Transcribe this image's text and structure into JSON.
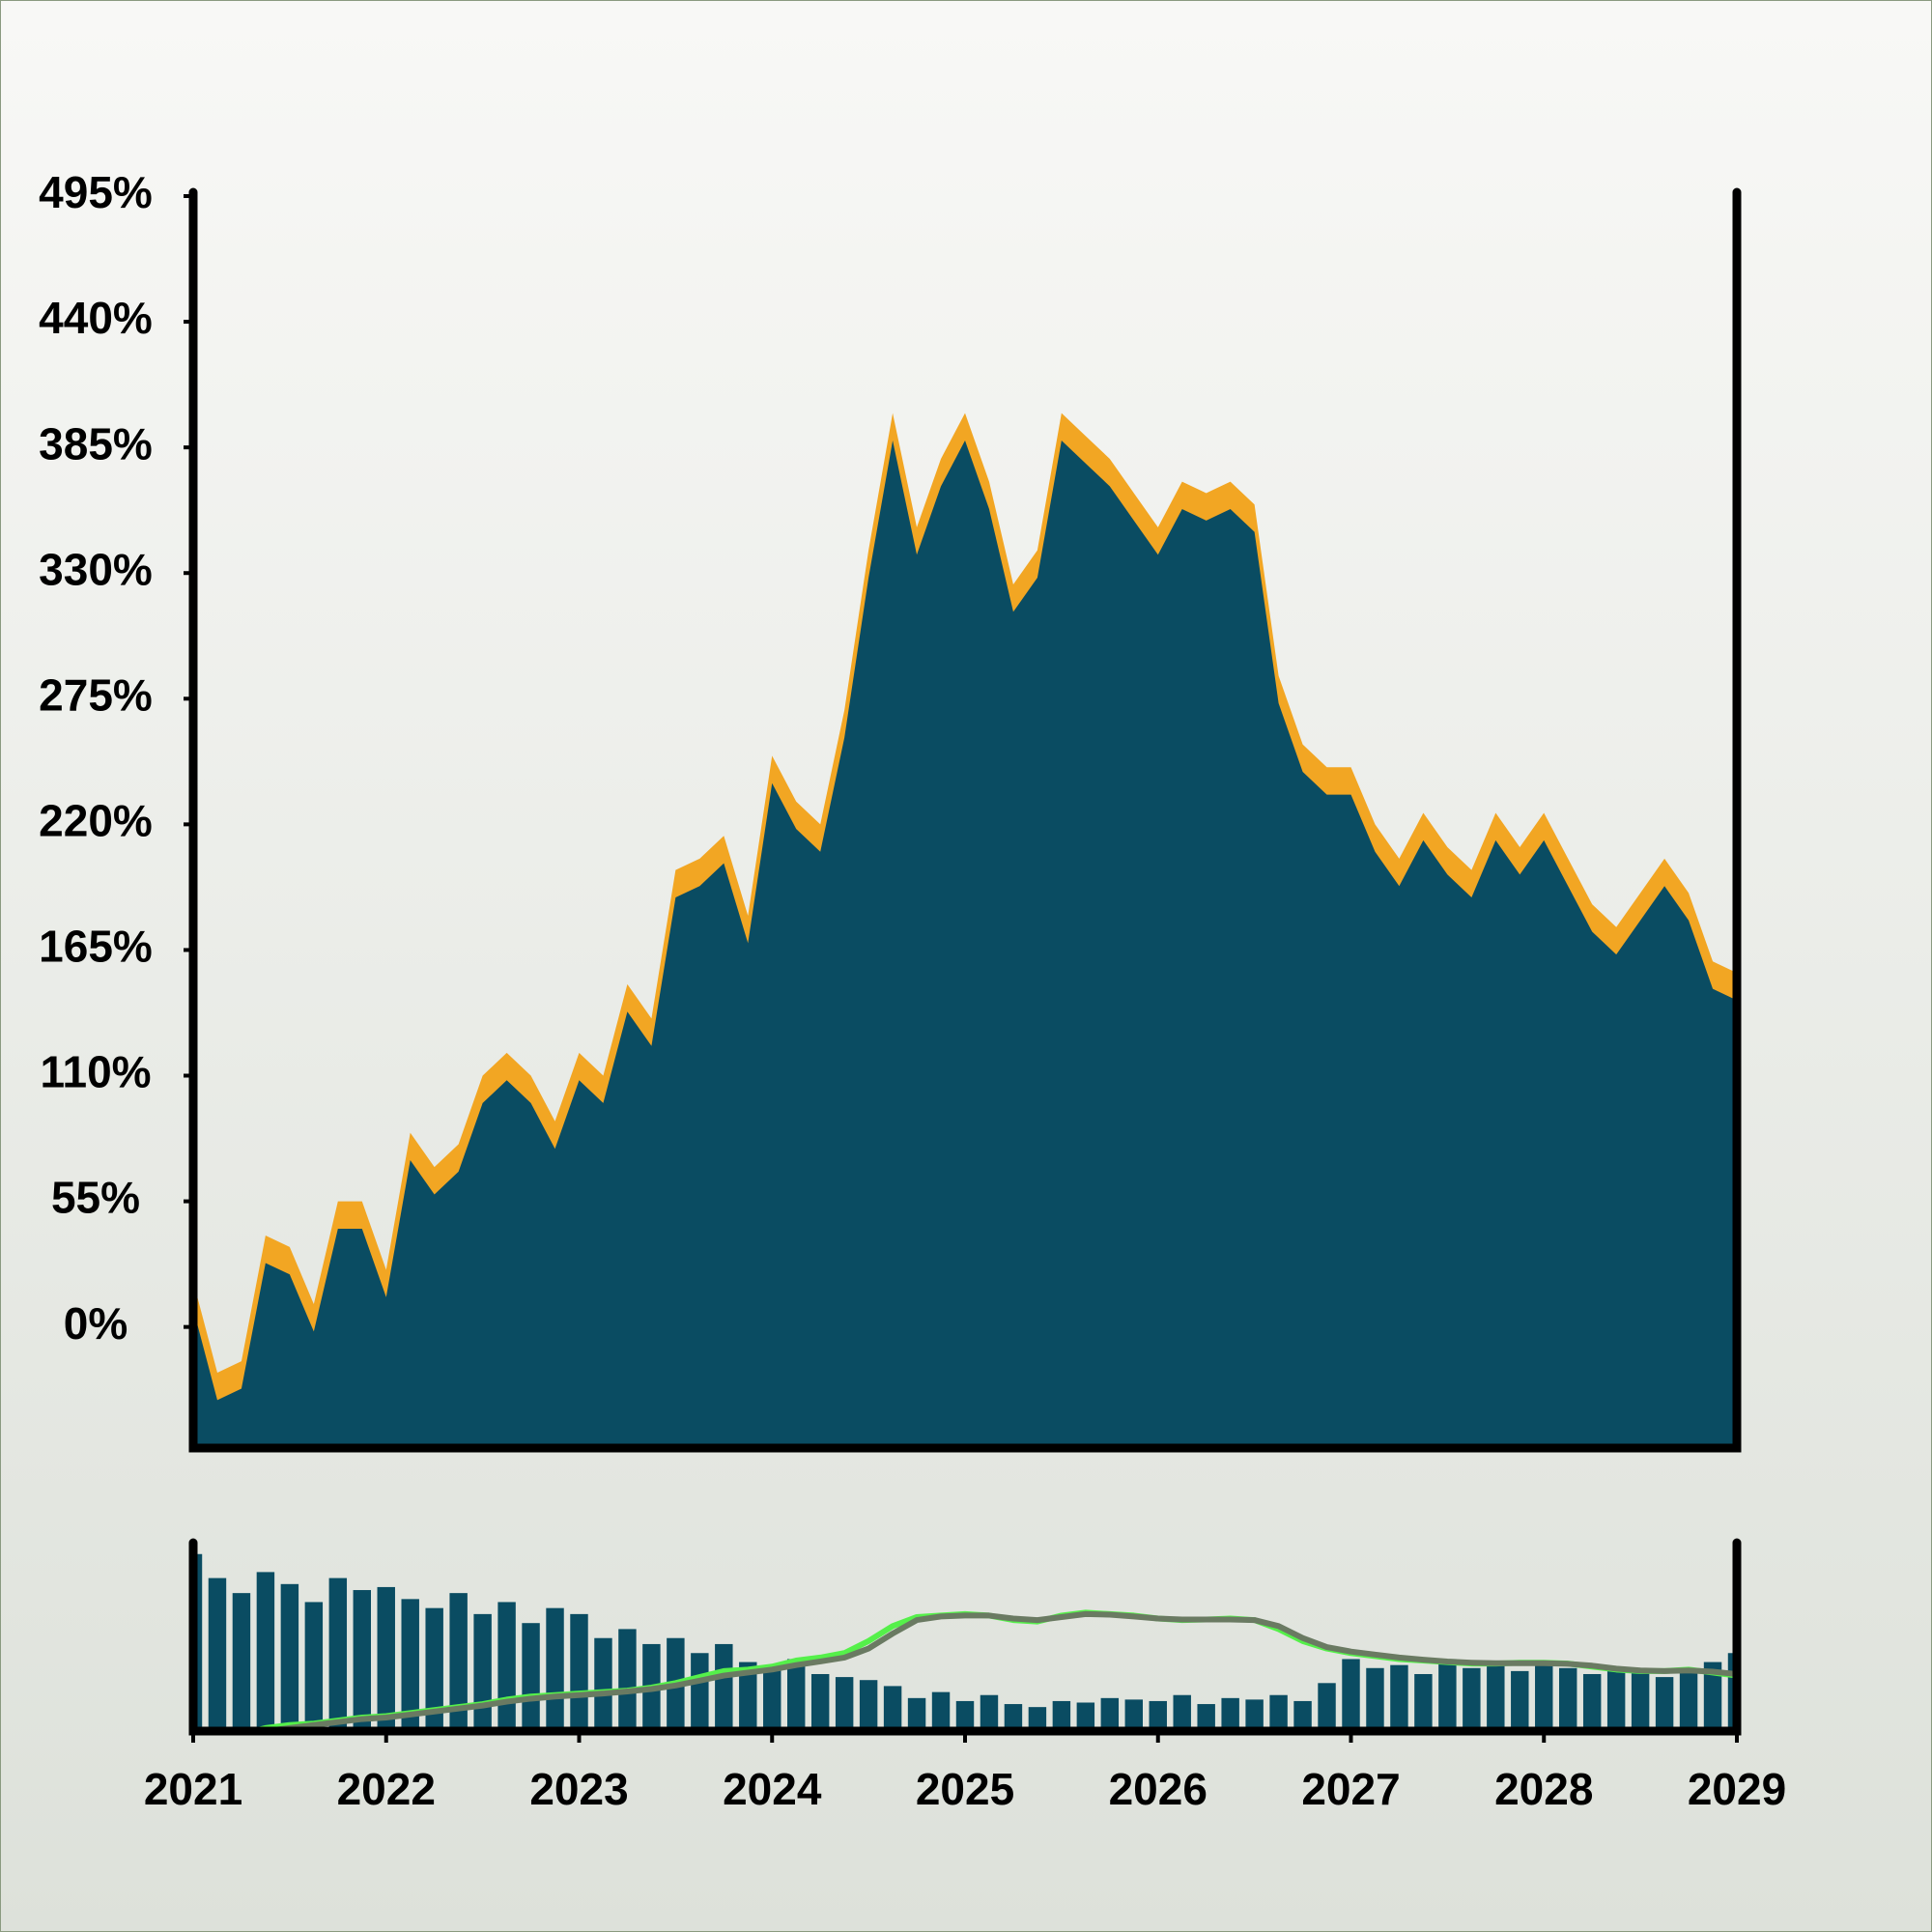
{
  "chart_data": [
    {
      "type": "area",
      "x": [
        2021,
        2021.125,
        2021.25,
        2021.375,
        2021.5,
        2021.625,
        2021.75,
        2021.875,
        2022,
        2022.125,
        2022.25,
        2022.375,
        2022.5,
        2022.625,
        2022.75,
        2022.875,
        2023,
        2023.125,
        2023.25,
        2023.375,
        2023.5,
        2023.625,
        2023.75,
        2023.875,
        2024,
        2024.125,
        2024.25,
        2024.375,
        2024.5,
        2024.625,
        2024.75,
        2024.875,
        2025,
        2025.125,
        2025.25,
        2025.375,
        2025.5,
        2025.625,
        2025.75,
        2025.875,
        2026,
        2026.125,
        2026.25,
        2026.375,
        2026.5,
        2026.625,
        2026.75,
        2026.875,
        2027,
        2027.125,
        2027.25,
        2027.375,
        2027.5,
        2027.625,
        2027.75,
        2027.875,
        2028,
        2028.125,
        2028.25,
        2028.375,
        2028.5,
        2028.625,
        2028.75,
        2028.875,
        2029
      ],
      "series": [
        {
          "color": "#f2a623",
          "values": [
            20,
            -20,
            -15,
            40,
            35,
            10,
            55,
            55,
            25,
            85,
            70,
            80,
            110,
            120,
            110,
            90,
            120,
            110,
            150,
            135,
            200,
            205,
            215,
            180,
            250,
            230,
            220,
            270,
            340,
            400,
            350,
            380,
            400,
            370,
            325,
            340,
            400,
            390,
            380,
            365,
            350,
            370,
            365,
            370,
            360,
            285,
            255,
            245,
            245,
            220,
            205,
            225,
            210,
            200,
            225,
            210,
            225,
            205,
            185,
            175,
            190,
            205,
            190,
            160,
            155
          ]
        },
        {
          "color": "#0a4c62",
          "values": [
            8,
            -32,
            -27,
            28,
            23,
            -2,
            43,
            43,
            13,
            73,
            58,
            68,
            98,
            108,
            98,
            78,
            108,
            98,
            138,
            123,
            188,
            193,
            203,
            168,
            238,
            218,
            208,
            258,
            328,
            388,
            338,
            368,
            388,
            358,
            313,
            328,
            388,
            378,
            368,
            353,
            338,
            358,
            353,
            358,
            348,
            273,
            243,
            233,
            233,
            208,
            193,
            213,
            198,
            188,
            213,
            198,
            213,
            193,
            173,
            163,
            178,
            193,
            178,
            148,
            143
          ]
        }
      ],
      "xlim": [
        2021,
        2029
      ],
      "ylim": [
        -53,
        495
      ],
      "yticks": [
        {
          "value": 0,
          "label": "0%"
        },
        {
          "value": 55,
          "label": "55%"
        },
        {
          "value": 110,
          "label": "110%"
        },
        {
          "value": 165,
          "label": "165%"
        },
        {
          "value": 220,
          "label": "220%"
        },
        {
          "value": 275,
          "label": "275%"
        },
        {
          "value": 330,
          "label": "330%"
        },
        {
          "value": 385,
          "label": "385%"
        },
        {
          "value": 440,
          "label": "440%"
        },
        {
          "value": 495,
          "label": "495%"
        }
      ]
    },
    {
      "type": "bar",
      "x": [
        2021,
        2021.125,
        2021.25,
        2021.375,
        2021.5,
        2021.625,
        2021.75,
        2021.875,
        2022,
        2022.125,
        2022.25,
        2022.375,
        2022.5,
        2022.625,
        2022.75,
        2022.875,
        2023,
        2023.125,
        2023.25,
        2023.375,
        2023.5,
        2023.625,
        2023.75,
        2023.875,
        2024,
        2024.125,
        2024.25,
        2024.375,
        2024.5,
        2024.625,
        2024.75,
        2024.875,
        2025,
        2025.125,
        2025.25,
        2025.375,
        2025.5,
        2025.625,
        2025.75,
        2025.875,
        2026,
        2026.125,
        2026.25,
        2026.375,
        2026.5,
        2026.625,
        2026.75,
        2026.875,
        2027,
        2027.125,
        2027.25,
        2027.375,
        2027.5,
        2027.625,
        2027.75,
        2027.875,
        2028,
        2028.125,
        2028.25,
        2028.375,
        2028.5,
        2028.625,
        2028.75,
        2028.875,
        2029
      ],
      "values": [
        580,
        500,
        450,
        520,
        480,
        420,
        500,
        460,
        470,
        430,
        400,
        450,
        380,
        420,
        350,
        400,
        380,
        300,
        330,
        280,
        300,
        250,
        280,
        220,
        200,
        230,
        180,
        170,
        160,
        140,
        100,
        120,
        90,
        110,
        80,
        70,
        90,
        85,
        100,
        95,
        90,
        110,
        80,
        100,
        95,
        110,
        90,
        150,
        230,
        200,
        210,
        180,
        230,
        200,
        220,
        190,
        210,
        200,
        180,
        200,
        190,
        170,
        190,
        220,
        250
      ],
      "color": "#0a4c62",
      "series": [
        {
          "color": "#55f04a",
          "values": [
            -10,
            -15,
            -20,
            0,
            10,
            15,
            25,
            35,
            40,
            50,
            60,
            70,
            80,
            95,
            105,
            110,
            115,
            120,
            125,
            135,
            150,
            170,
            190,
            195,
            205,
            225,
            235,
            250,
            290,
            340,
            370,
            375,
            380,
            375,
            360,
            355,
            375,
            385,
            380,
            375,
            365,
            360,
            362,
            365,
            360,
            330,
            290,
            265,
            250,
            240,
            230,
            225,
            220,
            215,
            215,
            218,
            218,
            215,
            205,
            195,
            190,
            190,
            195,
            185,
            175
          ]
        },
        {
          "color": "#6a7a62",
          "values": [
            -20,
            -20,
            -15,
            -10,
            0,
            10,
            20,
            30,
            35,
            45,
            55,
            65,
            75,
            88,
            98,
            105,
            110,
            115,
            122,
            130,
            142,
            158,
            175,
            185,
            195,
            210,
            222,
            235,
            265,
            315,
            360,
            372,
            375,
            375,
            365,
            360,
            370,
            380,
            378,
            372,
            365,
            362,
            362,
            362,
            360,
            340,
            300,
            270,
            255,
            245,
            235,
            228,
            222,
            218,
            216,
            216,
            216,
            214,
            208,
            198,
            192,
            190,
            192,
            188,
            180
          ]
        }
      ],
      "xlim": [
        2021,
        2029
      ],
      "ylim": [
        -10,
        605
      ],
      "xticks": [
        2021,
        2022,
        2023,
        2024,
        2025,
        2026,
        2027,
        2028,
        2029
      ]
    }
  ]
}
